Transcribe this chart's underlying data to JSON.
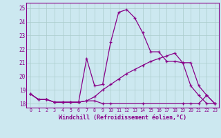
{
  "xlabel": "Windchill (Refroidissement éolien,°C)",
  "background_color": "#cce8f0",
  "grid_color": "#aacccc",
  "line_color": "#880088",
  "xlim": [
    -0.5,
    23.5
  ],
  "ylim": [
    17.7,
    25.4
  ],
  "yticks": [
    18,
    19,
    20,
    21,
    22,
    23,
    24,
    25
  ],
  "xticks": [
    0,
    1,
    2,
    3,
    4,
    5,
    6,
    7,
    8,
    9,
    10,
    11,
    12,
    13,
    14,
    15,
    16,
    17,
    18,
    19,
    20,
    21,
    22,
    23
  ],
  "series1_x": [
    0,
    1,
    2,
    3,
    4,
    5,
    6,
    7,
    8,
    9,
    10,
    11,
    12,
    13,
    14,
    15,
    16,
    17,
    18,
    19,
    20,
    21,
    22,
    23
  ],
  "series1_y": [
    18.7,
    18.3,
    18.3,
    18.1,
    18.1,
    18.1,
    18.1,
    21.3,
    19.3,
    19.4,
    22.5,
    24.7,
    24.9,
    24.3,
    23.2,
    21.8,
    21.8,
    21.1,
    21.1,
    21.0,
    19.3,
    18.6,
    18.0,
    18.0
  ],
  "series2_x": [
    0,
    1,
    2,
    3,
    4,
    5,
    6,
    7,
    8,
    9,
    10,
    14,
    19,
    20,
    21,
    22,
    23
  ],
  "series2_y": [
    18.7,
    18.3,
    18.3,
    18.1,
    18.1,
    18.1,
    18.1,
    18.2,
    18.2,
    18.0,
    18.0,
    18.0,
    18.0,
    18.0,
    18.0,
    18.6,
    18.0
  ],
  "series3_x": [
    0,
    1,
    2,
    3,
    4,
    5,
    6,
    7,
    8,
    9,
    10,
    11,
    12,
    13,
    14,
    15,
    16,
    17,
    18,
    19,
    20,
    21,
    22,
    23
  ],
  "series3_y": [
    18.7,
    18.3,
    18.3,
    18.1,
    18.1,
    18.1,
    18.1,
    18.2,
    18.5,
    19.0,
    19.4,
    19.8,
    20.2,
    20.5,
    20.8,
    21.1,
    21.3,
    21.5,
    21.7,
    21.0,
    21.0,
    19.3,
    18.6,
    18.0
  ]
}
